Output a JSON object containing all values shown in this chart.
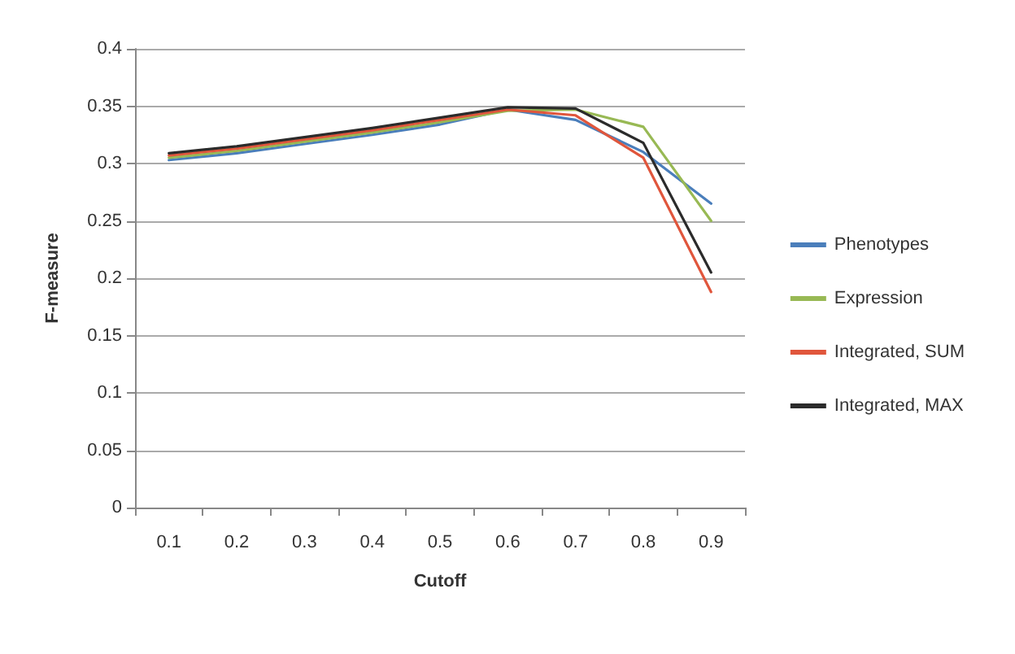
{
  "chart_data": {
    "type": "line",
    "xlabel": "Cutoff",
    "ylabel": "F-measure",
    "categories": [
      "0.1",
      "0.2",
      "0.3",
      "0.4",
      "0.5",
      "0.6",
      "0.7",
      "0.8",
      "0.9"
    ],
    "series": [
      {
        "name": "Phenotypes",
        "color": "#4a7ebb",
        "values": [
          0.303,
          0.309,
          0.317,
          0.325,
          0.334,
          0.347,
          0.338,
          0.31,
          0.265
        ]
      },
      {
        "name": "Expression",
        "color": "#98b954",
        "values": [
          0.305,
          0.311,
          0.319,
          0.327,
          0.336,
          0.346,
          0.347,
          0.332,
          0.25
        ]
      },
      {
        "name": "Integrated, SUM",
        "color": "#e0563c",
        "values": [
          0.307,
          0.313,
          0.321,
          0.329,
          0.338,
          0.347,
          0.342,
          0.305,
          0.188
        ]
      },
      {
        "name": "Integrated, MAX",
        "color": "#2b2b2b",
        "values": [
          0.309,
          0.315,
          0.323,
          0.331,
          0.34,
          0.349,
          0.348,
          0.318,
          0.205
        ]
      }
    ],
    "ylim": [
      0,
      0.4
    ],
    "yticks": [
      0,
      0.05,
      0.1,
      0.15,
      0.2,
      0.25,
      0.3,
      0.35,
      0.4
    ],
    "grid": "y",
    "legend": "right",
    "marker": "none",
    "line_style": "solid"
  }
}
